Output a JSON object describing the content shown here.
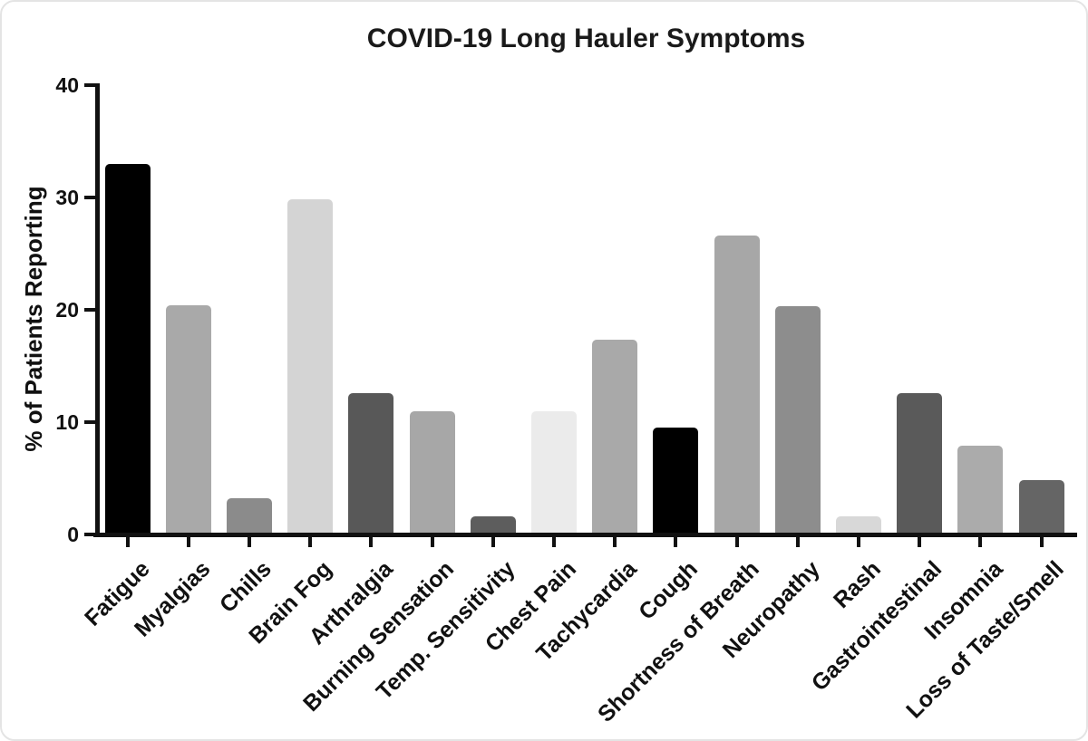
{
  "window": {
    "background": "#ffffff",
    "card_border_color": "#e4e4e4"
  },
  "chart_data": {
    "type": "bar",
    "title": "COVID-19 Long Hauler Symptoms",
    "xlabel": "",
    "ylabel": "% of Patients Reporting",
    "ylim": [
      0,
      40
    ],
    "yticks": [
      0,
      10,
      20,
      30,
      40
    ],
    "grid": false,
    "legend": null,
    "axis_color": "#111111",
    "categories": [
      "Fatigue",
      "Myalgias",
      "Chills",
      "Brain Fog",
      "Arthralgia",
      "Burning Sensation",
      "Temp. Sensitivity",
      "Chest Pain",
      "Tachycardia",
      "Cough",
      "Shortness of Breath",
      "Neuropathy",
      "Rash",
      "Gastrointestinal",
      "Insomnia",
      "Loss of Taste/Smell"
    ],
    "values": [
      33.0,
      20.4,
      3.2,
      29.8,
      12.6,
      11.0,
      1.6,
      11.0,
      17.3,
      9.5,
      26.6,
      20.3,
      1.6,
      12.6,
      7.9,
      4.8
    ],
    "bar_colors": [
      "#000000",
      "#a9a9a9",
      "#8b8b8b",
      "#d4d4d4",
      "#585858",
      "#a7a7a7",
      "#5d5d5d",
      "#ebebeb",
      "#a9a9a9",
      "#000000",
      "#a7a7a7",
      "#8d8d8d",
      "#d8d8d8",
      "#5a5a5a",
      "#ababab",
      "#656565"
    ],
    "x_tick_labels_rotation_deg": 45
  }
}
